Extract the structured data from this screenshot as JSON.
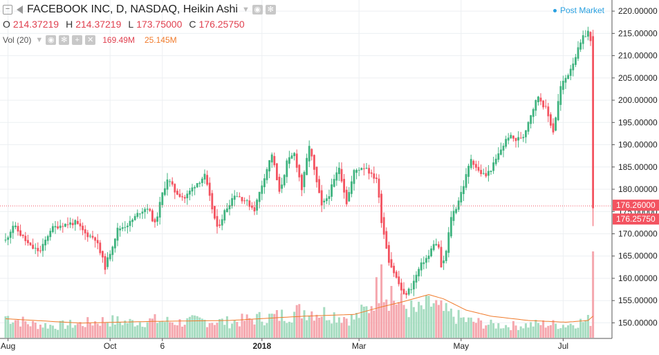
{
  "legend": {
    "title": "FACEBOOK INC, D, NASDAQ, Heikin Ashi",
    "ohlc": [
      {
        "key": "O",
        "value": "214.37219"
      },
      {
        "key": "H",
        "value": "214.37219"
      },
      {
        "key": "L",
        "value": "173.75000"
      },
      {
        "key": "C",
        "value": "176.25750"
      }
    ],
    "volume": {
      "label": "Vol (20)",
      "value": "169.49M",
      "ma_value": "25.145M"
    }
  },
  "post_market_label": "Post Market",
  "price_labels": [
    {
      "text": "176.26000",
      "price": 176.26,
      "color": "#f35360"
    },
    {
      "text": "176.25750",
      "price": 176.2575,
      "color": "#f35360"
    }
  ],
  "colors": {
    "up": "#3fb37f",
    "down": "#f35360",
    "vol_up": "#a6dcc0",
    "vol_down": "#f5a7ae",
    "vol_ma": "#f07a2a",
    "grid": "#eceff2",
    "axis_text": "#222222"
  },
  "chart_data": {
    "type": "candlestick",
    "title": "FACEBOOK INC, D, NASDAQ, Heikin Ashi",
    "y_axis_ticks": [
      150,
      155,
      160,
      165,
      170,
      175,
      180,
      185,
      190,
      195,
      200,
      205,
      210,
      215,
      220
    ],
    "ylim": [
      146.5,
      222.5
    ],
    "x_axis_ticks": [
      {
        "label": "Aug",
        "bar": 1
      },
      {
        "label": "Oct",
        "bar": 42
      },
      {
        "label": "6",
        "bar": 63
      },
      {
        "label": "2018",
        "bar": 103
      },
      {
        "label": "Mar",
        "bar": 142
      },
      {
        "label": "May",
        "bar": 183
      },
      {
        "label": "Jul",
        "bar": 224
      }
    ],
    "bar_count": 240,
    "price_path": [
      [
        0,
        168.5
      ],
      [
        3,
        172
      ],
      [
        10,
        167
      ],
      [
        14,
        166
      ],
      [
        18,
        171
      ],
      [
        22,
        172
      ],
      [
        28,
        172.5
      ],
      [
        32,
        170
      ],
      [
        36,
        169
      ],
      [
        40,
        162.5
      ],
      [
        45,
        171
      ],
      [
        50,
        172.5
      ],
      [
        54,
        175
      ],
      [
        57,
        176
      ],
      [
        60,
        172
      ],
      [
        63,
        179
      ],
      [
        65,
        182.5
      ],
      [
        68,
        179.5
      ],
      [
        72,
        178
      ],
      [
        76,
        181
      ],
      [
        80,
        183
      ],
      [
        82,
        178
      ],
      [
        85,
        171
      ],
      [
        88,
        175
      ],
      [
        92,
        179
      ],
      [
        96,
        177.5
      ],
      [
        100,
        175.5
      ],
      [
        104,
        183
      ],
      [
        107,
        188
      ],
      [
        110,
        179
      ],
      [
        113,
        186
      ],
      [
        116,
        188
      ],
      [
        119,
        180
      ],
      [
        122,
        190
      ],
      [
        124,
        184
      ],
      [
        127,
        176
      ],
      [
        130,
        179
      ],
      [
        134,
        185
      ],
      [
        137,
        177
      ],
      [
        140,
        184
      ],
      [
        143,
        185
      ],
      [
        145,
        185
      ],
      [
        147,
        183
      ],
      [
        149,
        182.5
      ],
      [
        151,
        173
      ],
      [
        154,
        164
      ],
      [
        157,
        160
      ],
      [
        160,
        156
      ],
      [
        163,
        158
      ],
      [
        166,
        162
      ],
      [
        168,
        164
      ],
      [
        170,
        165
      ],
      [
        172,
        168
      ],
      [
        174,
        167
      ],
      [
        175,
        162
      ],
      [
        177,
        166
      ],
      [
        179,
        174
      ],
      [
        181,
        176
      ],
      [
        184,
        181
      ],
      [
        187,
        187
      ],
      [
        190,
        184
      ],
      [
        193,
        183
      ],
      [
        196,
        185.5
      ],
      [
        199,
        189
      ],
      [
        202,
        192
      ],
      [
        205,
        191
      ],
      [
        208,
        192
      ],
      [
        211,
        197
      ],
      [
        214,
        201
      ],
      [
        217,
        198
      ],
      [
        220,
        193
      ],
      [
        223,
        203
      ],
      [
        226,
        206
      ],
      [
        229,
        210
      ],
      [
        232,
        214
      ],
      [
        234,
        215.5
      ],
      [
        235,
        213
      ],
      [
        236,
        176.3
      ]
    ],
    "volume_path": [
      [
        0,
        0.25
      ],
      [
        10,
        0.16
      ],
      [
        20,
        0.14
      ],
      [
        30,
        0.16
      ],
      [
        40,
        0.2
      ],
      [
        50,
        0.18
      ],
      [
        60,
        0.2
      ],
      [
        70,
        0.18
      ],
      [
        80,
        0.2
      ],
      [
        90,
        0.18
      ],
      [
        100,
        0.22
      ],
      [
        110,
        0.25
      ],
      [
        120,
        0.32
      ],
      [
        130,
        0.28
      ],
      [
        140,
        0.22
      ],
      [
        146,
        0.35
      ],
      [
        150,
        0.6
      ],
      [
        154,
        0.5
      ],
      [
        158,
        0.4
      ],
      [
        165,
        0.3
      ],
      [
        172,
        0.4
      ],
      [
        176,
        0.3
      ],
      [
        185,
        0.2
      ],
      [
        195,
        0.15
      ],
      [
        205,
        0.14
      ],
      [
        215,
        0.16
      ],
      [
        225,
        0.15
      ],
      [
        234,
        0.2
      ]
    ],
    "volume_spikes": [
      {
        "bar": 151,
        "value": 0.85
      },
      {
        "bar": 155,
        "value": 0.6
      },
      {
        "bar": 174,
        "value": 0.38
      },
      {
        "bar": 236,
        "value": 1.0
      }
    ],
    "volume_ma_path": [
      [
        0,
        0.22
      ],
      [
        30,
        0.17
      ],
      [
        60,
        0.19
      ],
      [
        90,
        0.2
      ],
      [
        120,
        0.25
      ],
      [
        140,
        0.27
      ],
      [
        150,
        0.35
      ],
      [
        160,
        0.42
      ],
      [
        170,
        0.5
      ],
      [
        176,
        0.45
      ],
      [
        185,
        0.32
      ],
      [
        195,
        0.25
      ],
      [
        210,
        0.2
      ],
      [
        225,
        0.18
      ],
      [
        234,
        0.2
      ],
      [
        236,
        0.25
      ]
    ],
    "last_price": 176.2575,
    "series": [
      {
        "name": "Vol (20)"
      }
    ]
  }
}
